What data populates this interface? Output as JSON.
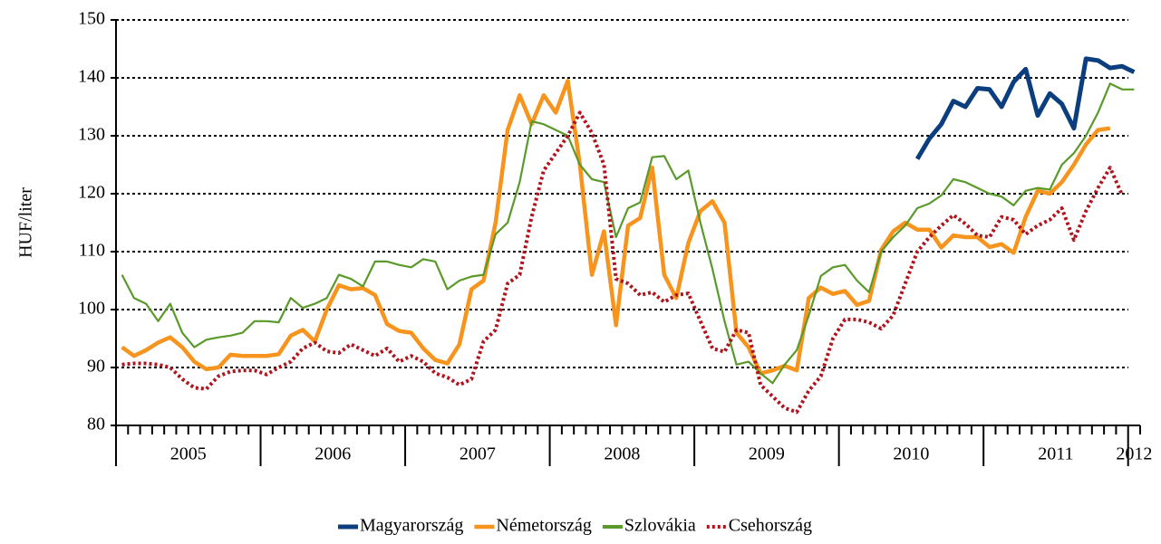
{
  "chart_data": {
    "type": "line",
    "y_label": "HUF/liter",
    "x_labels": [
      "2005",
      "2006",
      "2007",
      "2008",
      "2009",
      "2010",
      "2011",
      "2012"
    ],
    "ylim": [
      80,
      150
    ],
    "yticks": [
      80,
      90,
      100,
      110,
      120,
      130,
      140,
      150
    ],
    "grid": true,
    "legend": "bottom",
    "series": [
      {
        "name": "Magyarország",
        "color": "#0b3e7e",
        "width": 5,
        "dashed": false,
        "values": [
          null,
          null,
          null,
          null,
          null,
          null,
          null,
          null,
          null,
          null,
          null,
          null,
          null,
          null,
          null,
          null,
          null,
          null,
          null,
          null,
          null,
          null,
          null,
          null,
          null,
          null,
          null,
          null,
          null,
          null,
          null,
          null,
          null,
          null,
          null,
          null,
          null,
          null,
          null,
          null,
          null,
          null,
          null,
          null,
          null,
          null,
          null,
          null,
          null,
          null,
          null,
          null,
          null,
          null,
          null,
          null,
          null,
          null,
          null,
          null,
          null,
          null,
          null,
          null,
          null,
          null,
          126,
          129.5,
          132,
          136,
          135,
          138.2,
          138,
          135,
          139.3,
          141.5,
          133.5,
          137.3,
          135.5,
          131.3,
          143.3,
          143,
          141.7,
          142,
          141
        ]
      },
      {
        "name": "Németország",
        "color": "#f7941d",
        "width": 4.5,
        "dashed": false,
        "values": [
          93.5,
          92,
          93,
          94.3,
          95.2,
          93.5,
          91,
          89.7,
          90,
          92.2,
          92,
          92,
          92,
          92.3,
          95.5,
          96.5,
          94.5,
          100,
          104.2,
          103.5,
          103.7,
          102.5,
          97.5,
          96.3,
          96,
          93.3,
          91.3,
          90.7,
          94,
          103.5,
          105,
          115,
          131,
          137,
          132,
          137,
          134,
          139.5,
          125,
          106,
          113.5,
          97.3,
          114.5,
          115.8,
          124.5,
          106,
          102,
          111.5,
          117,
          118.7,
          115,
          96,
          93.5,
          89,
          89.5,
          90.3,
          89.5,
          102,
          103.8,
          102.7,
          103.2,
          100.8,
          101.5,
          110.3,
          113.5,
          115,
          113.8,
          113.8,
          110.7,
          112.8,
          112.5,
          112.5,
          110.8,
          111.3,
          109.8,
          116,
          120.5,
          120,
          122,
          125,
          128.5,
          131,
          131.3,
          null,
          null
        ]
      },
      {
        "name": "Szlovákia",
        "color": "#5a9a2a",
        "width": 2.2,
        "dashed": false,
        "values": [
          106,
          102,
          101,
          98,
          101,
          96,
          93.5,
          94.8,
          95.2,
          95.5,
          96,
          98,
          98,
          97.8,
          102,
          100.3,
          101,
          102,
          106,
          105.3,
          104,
          108.3,
          108.3,
          107.7,
          107.3,
          108.7,
          108.3,
          103.5,
          105,
          105.7,
          106,
          113,
          115,
          122,
          132.5,
          132,
          131,
          130,
          125,
          122.5,
          122,
          112.5,
          117.5,
          118.5,
          126.3,
          126.5,
          122.5,
          124,
          115,
          107,
          98,
          90.5,
          91,
          89,
          87.3,
          90.5,
          93,
          99,
          105.8,
          107.3,
          107.7,
          105,
          103,
          110,
          112.5,
          114.5,
          117.5,
          118.3,
          119.7,
          122.5,
          122,
          121,
          120,
          119.5,
          118,
          120.5,
          121,
          120.7,
          125,
          127,
          130,
          134,
          139,
          138,
          138
        ]
      },
      {
        "name": "Csehország",
        "color": "#b0141c",
        "width": 4,
        "dashed": true,
        "values": [
          90.5,
          90.7,
          90.7,
          90.5,
          90,
          88,
          86.5,
          86.3,
          88.5,
          89.3,
          89.5,
          89.5,
          88.8,
          90,
          91,
          93.3,
          94.3,
          92.8,
          92.5,
          94,
          93,
          92,
          93.3,
          91,
          92,
          91,
          89,
          88.3,
          87,
          88,
          94.5,
          96.5,
          104.5,
          106,
          116,
          124,
          127,
          130,
          134,
          130.5,
          125,
          105.3,
          104.5,
          102.5,
          103,
          101.3,
          102.5,
          102.8,
          98,
          93.3,
          92.7,
          96.5,
          96,
          87,
          85,
          83,
          82.3,
          86,
          88.5,
          95,
          98.3,
          98.3,
          97.8,
          96.7,
          99,
          104.5,
          110,
          112.5,
          114.5,
          116.3,
          114.8,
          112.8,
          112.5,
          116,
          115.5,
          113,
          114.5,
          115.5,
          117.5,
          112,
          117,
          121,
          124.5,
          119.8,
          null
        ]
      }
    ]
  }
}
